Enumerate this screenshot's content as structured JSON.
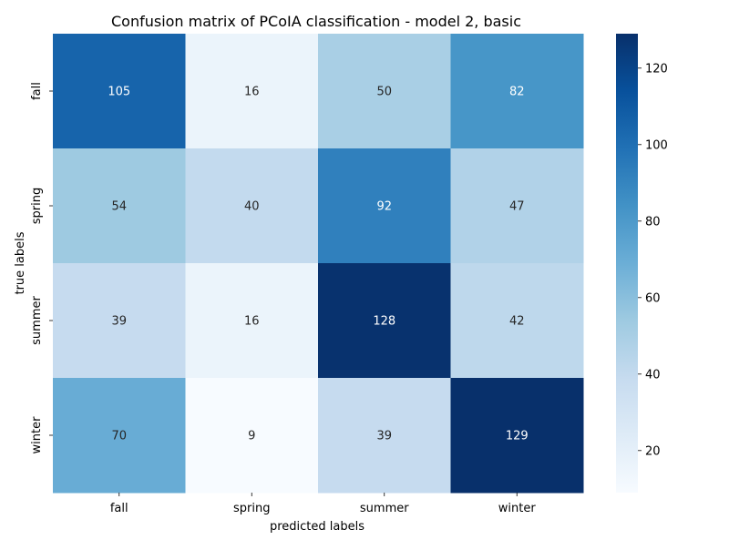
{
  "chart_data": {
    "type": "heatmap",
    "title": "Confusion matrix of PCoIA classification - model 2, basic",
    "xlabel": "predicted labels",
    "ylabel": "true labels",
    "x_categories": [
      "fall",
      "spring",
      "summer",
      "winter"
    ],
    "y_categories": [
      "fall",
      "spring",
      "summer",
      "winter"
    ],
    "values": [
      [
        105,
        16,
        50,
        82
      ],
      [
        54,
        40,
        92,
        47
      ],
      [
        39,
        16,
        128,
        42
      ],
      [
        70,
        9,
        39,
        129
      ]
    ],
    "colormap": "Blues",
    "color_range": [
      9,
      129
    ],
    "colorbar_ticks": [
      "20",
      "40",
      "60",
      "80",
      "100",
      "120"
    ],
    "colorbar_tick_values": [
      20,
      40,
      60,
      80,
      100,
      120
    ],
    "annotate_cells": true
  }
}
